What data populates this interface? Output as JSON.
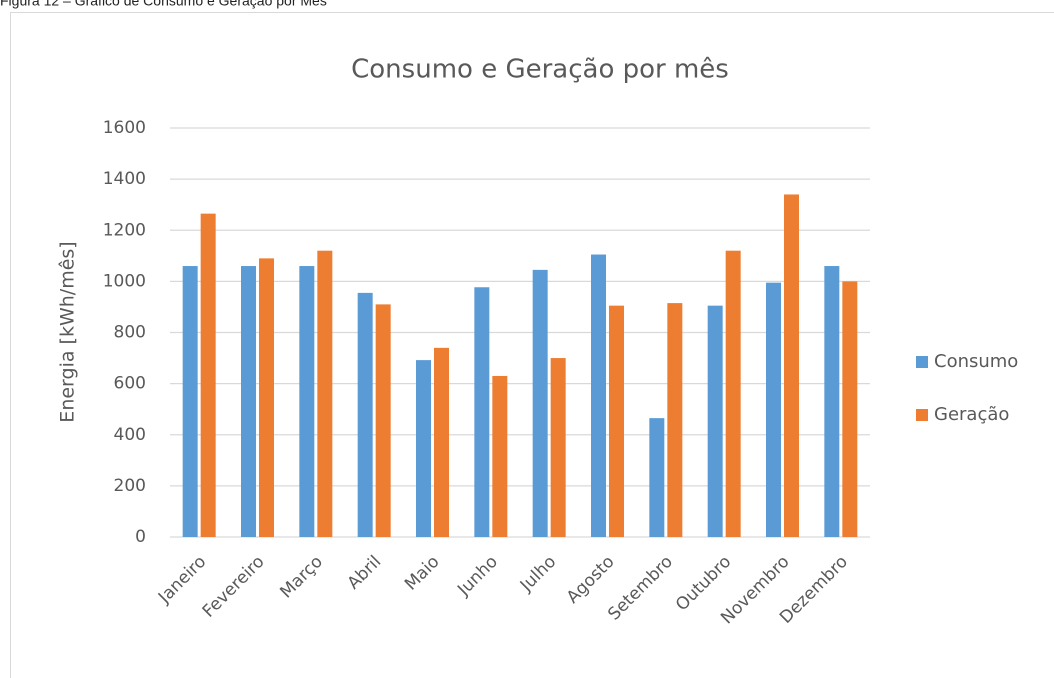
{
  "caption": "Figura 12 – Gráfico de Consumo e Geração por Mês",
  "chart_data": {
    "type": "bar",
    "title": "Consumo e Geração por mês",
    "y_label": "Energia [kWh/mês]",
    "categories": [
      "Janeiro",
      "Fevereiro",
      "Março",
      "Abril",
      "Maio",
      "Junho",
      "Julho",
      "Agosto",
      "Setembro",
      "Outubro",
      "Novembro",
      "Dezembro"
    ],
    "series": [
      {
        "name": "Consumo",
        "color": "#5b9bd5",
        "values": [
          1060,
          1060,
          1060,
          955,
          692,
          977,
          1045,
          1105,
          465,
          905,
          995,
          1060
        ]
      },
      {
        "name": "Geração",
        "color": "#ed7d31",
        "values": [
          1265,
          1090,
          1120,
          910,
          740,
          630,
          700,
          905,
          915,
          1120,
          1340,
          1000
        ]
      }
    ],
    "ylim": [
      0,
      1600
    ],
    "yticks": [
      0,
      200,
      400,
      600,
      800,
      1000,
      1200,
      1400,
      1600
    ],
    "grid": true,
    "legend": "right"
  }
}
